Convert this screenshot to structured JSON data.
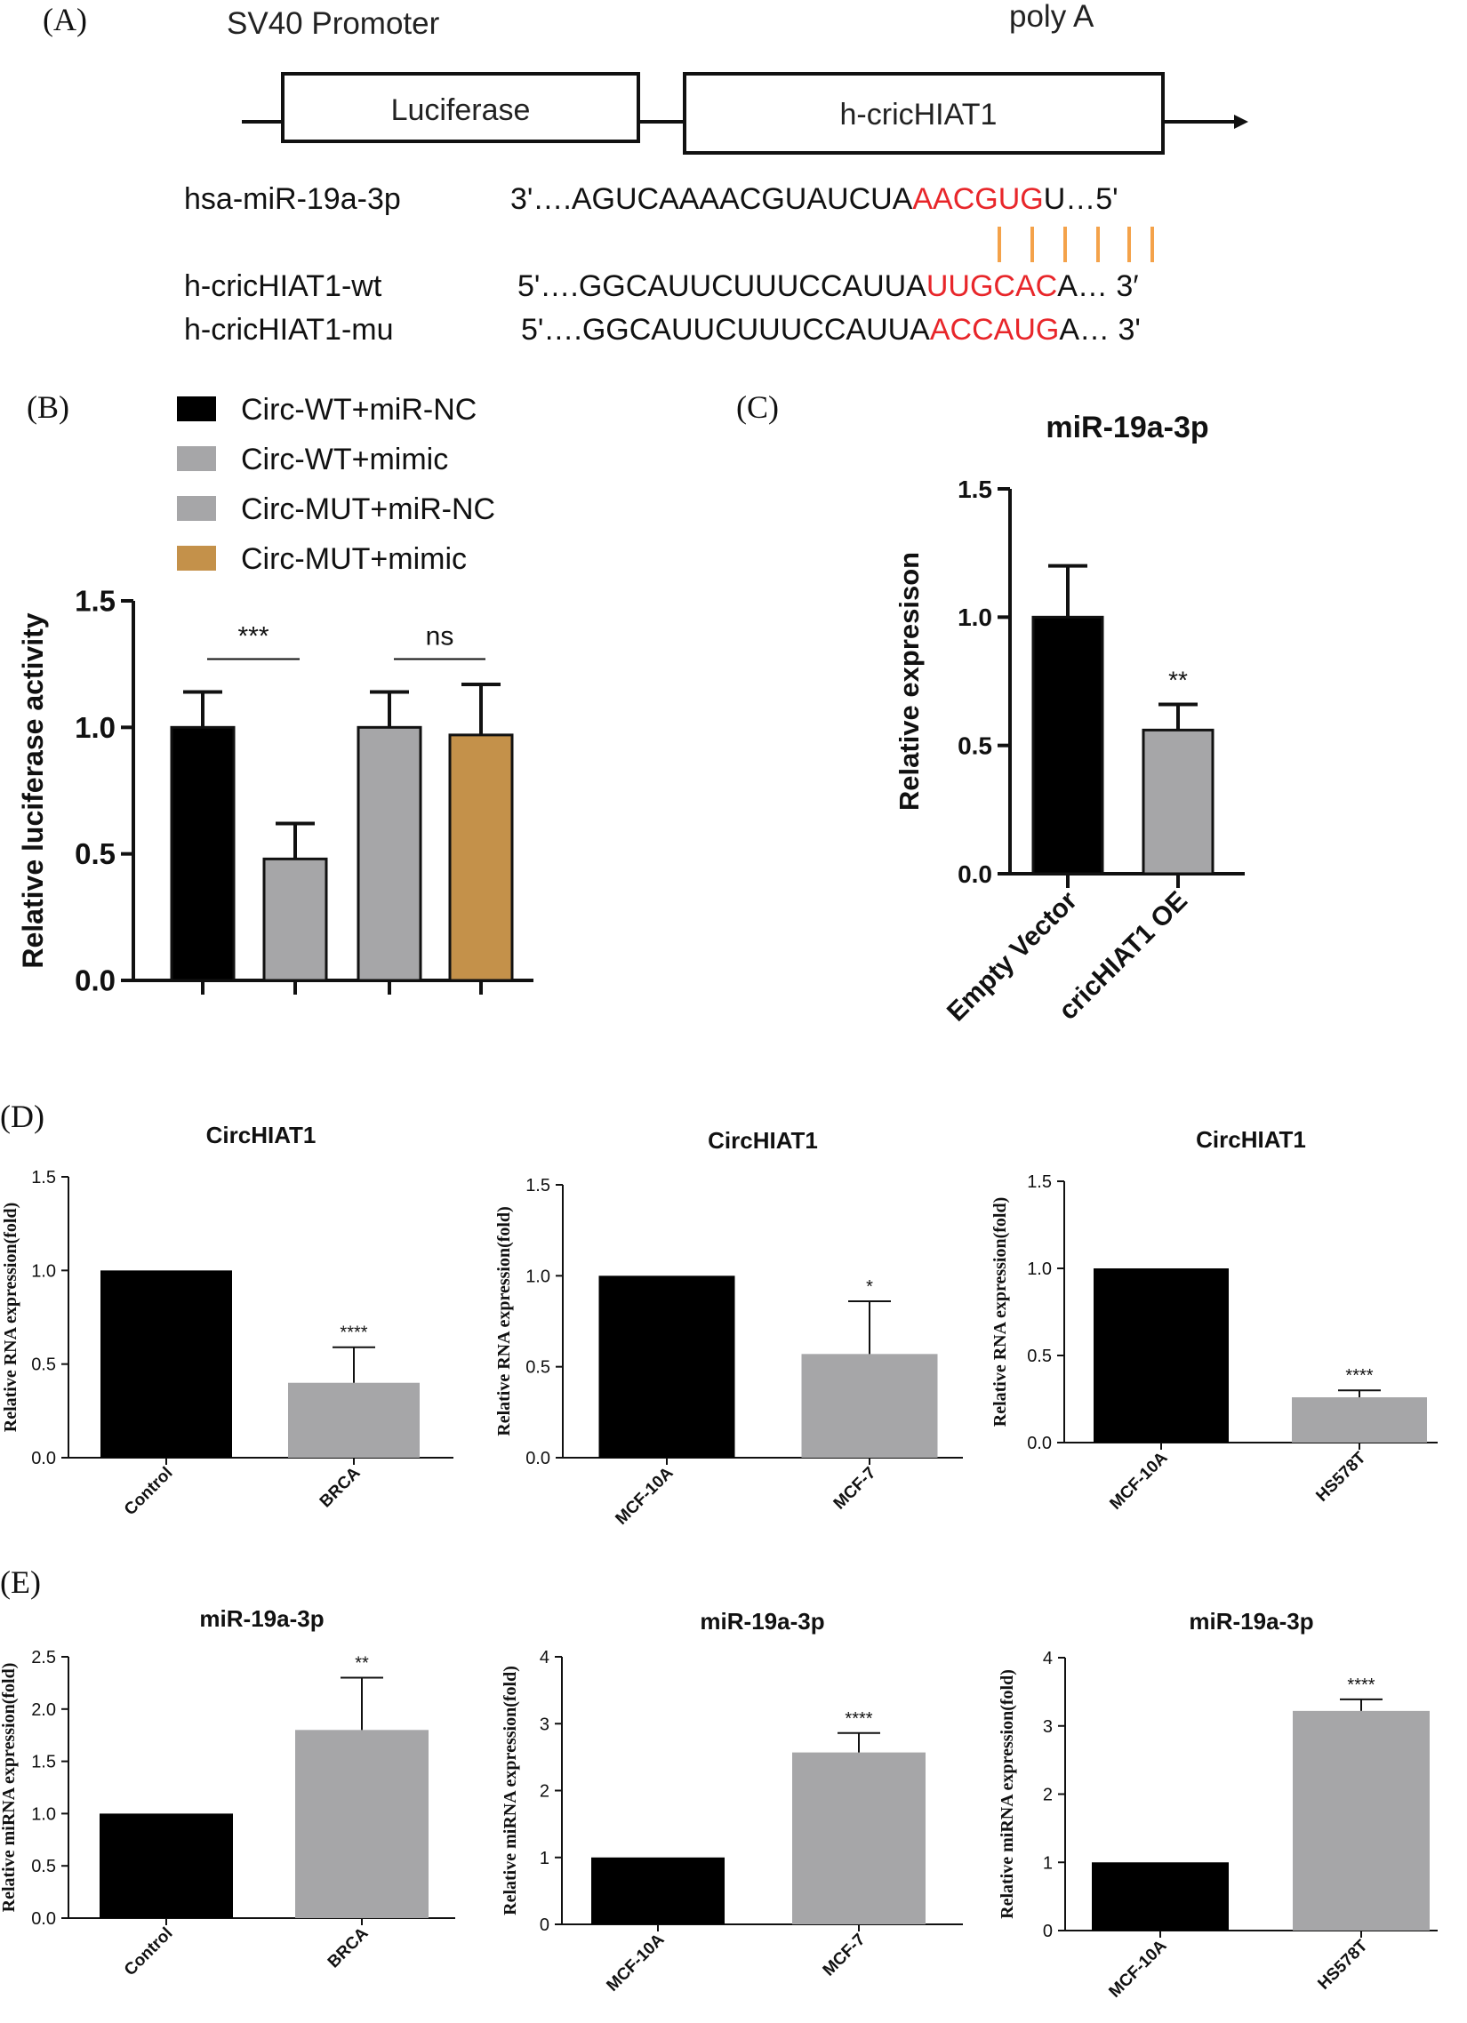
{
  "panel_labels": {
    "A": "(A)",
    "B": "(B)",
    "C": "(C)",
    "D": "(D)",
    "E": "(E)"
  },
  "construct": {
    "promoter_label": "SV40 Promoter",
    "polya_label": "poly A",
    "box1_label": "Luciferase",
    "box2_label": "h-cricHIAT1",
    "mir_name": "hsa-miR-19a-3p",
    "mir_seq_prefix": "3'….AGUCAAAACGUAUCUA",
    "mir_seq_red": "AACGUG",
    "mir_seq_suffix": "U…5'",
    "wt_name": "h-cricHIAT1-wt",
    "wt_seq_prefix": "5'….GGCAUUCUUUCCAUUA",
    "wt_seq_red": "UUGCAC",
    "wt_seq_suffix": "A… 3′",
    "mu_name": "h-cricHIAT1-mu",
    "mu_seq_prefix": "5'….GGCAUUCUUUCCAUUA",
    "mu_seq_red": "ACCAUG",
    "mu_seq_suffix": "A… 3'",
    "highlight_color": "#e8262a",
    "pairing_color": "#f4a24a"
  },
  "chart_data": [
    {
      "id": "B",
      "type": "bar",
      "title": "",
      "ylabel": "Relative luciferase activity",
      "xlabel": "",
      "ylim": [
        0,
        1.5
      ],
      "yticks": [
        "0.0",
        "0.5",
        "1.0",
        "1.5"
      ],
      "categories": [
        "Circ-WT+miR-NC",
        "Circ-WT+mimic",
        "Circ-MUT+miR-NC",
        "Circ-MUT+mimic"
      ],
      "values": [
        1.0,
        0.48,
        1.0,
        0.97
      ],
      "errors": [
        0.14,
        0.14,
        0.14,
        0.2
      ],
      "colors": [
        "#000000",
        "#a6a6a8",
        "#a6a6a8",
        "#c4914a"
      ],
      "legend": [
        "Circ-WT+miR-NC",
        "Circ-WT+mimic",
        "Circ-MUT+miR-NC",
        "Circ-MUT+mimic"
      ],
      "annotations": [
        {
          "text": "***",
          "from": 0,
          "to": 1,
          "y": 1.27
        },
        {
          "text": "ns",
          "from": 2,
          "to": 3,
          "y": 1.27
        }
      ]
    },
    {
      "id": "C",
      "type": "bar",
      "title": "miR-19a-3p",
      "ylabel": "Relative expresison",
      "ylim": [
        0,
        1.5
      ],
      "yticks": [
        "0.0",
        "0.5",
        "1.0",
        "1.5"
      ],
      "categories": [
        "Empty Vector",
        "cricHIAT1 OE"
      ],
      "values": [
        1.0,
        0.56
      ],
      "errors": [
        0.2,
        0.1
      ],
      "colors": [
        "#000000",
        "#a6a6a8"
      ],
      "sig": [
        "",
        "**"
      ]
    },
    {
      "id": "D1",
      "type": "bar",
      "title": "CircHIAT1",
      "ylabel": "Relative RNA expression(fold)",
      "ylim": [
        0,
        1.5
      ],
      "yticks": [
        "0.0",
        "0.5",
        "1.0",
        "1.5"
      ],
      "categories": [
        "Control",
        "BRCA"
      ],
      "values": [
        1.0,
        0.4
      ],
      "errors": [
        0,
        0.19
      ],
      "colors": [
        "#000000",
        "#a6a6a8"
      ],
      "sig": [
        "",
        "****"
      ]
    },
    {
      "id": "D2",
      "type": "bar",
      "title": "CircHIAT1",
      "ylabel": "Relative RNA expression(fold)",
      "ylim": [
        0,
        1.5
      ],
      "yticks": [
        "0.0",
        "0.5",
        "1.0",
        "1.5"
      ],
      "categories": [
        "MCF-10A",
        "MCF-7"
      ],
      "values": [
        1.0,
        0.57
      ],
      "errors": [
        0,
        0.29
      ],
      "colors": [
        "#000000",
        "#a6a6a8"
      ],
      "sig": [
        "",
        "*"
      ]
    },
    {
      "id": "D3",
      "type": "bar",
      "title": "CircHIAT1",
      "ylabel": "Relative RNA expression(fold)",
      "ylim": [
        0,
        1.5
      ],
      "yticks": [
        "0.0",
        "0.5",
        "1.0",
        "1.5"
      ],
      "categories": [
        "MCF-10A",
        "HS578T"
      ],
      "values": [
        1.0,
        0.26
      ],
      "errors": [
        0,
        0.04
      ],
      "colors": [
        "#000000",
        "#a6a6a8"
      ],
      "sig": [
        "",
        "****"
      ]
    },
    {
      "id": "E1",
      "type": "bar",
      "title": "miR-19a-3p",
      "ylabel": "Relative miRNA expression(fold)",
      "ylim": [
        0,
        2.5
      ],
      "yticks": [
        "0.0",
        "0.5",
        "1.0",
        "1.5",
        "2.0",
        "2.5"
      ],
      "categories": [
        "Control",
        "BRCA"
      ],
      "values": [
        1.0,
        1.8
      ],
      "errors": [
        0,
        0.5
      ],
      "colors": [
        "#000000",
        "#a6a6a8"
      ],
      "sig": [
        "",
        "**"
      ]
    },
    {
      "id": "E2",
      "type": "bar",
      "title": "miR-19a-3p",
      "ylabel": "Relative miRNA expression(fold)",
      "ylim": [
        0,
        4
      ],
      "yticks": [
        "0",
        "1",
        "2",
        "3",
        "4"
      ],
      "categories": [
        "MCF-10A",
        "MCF-7"
      ],
      "values": [
        1.0,
        2.57
      ],
      "errors": [
        0,
        0.29
      ],
      "colors": [
        "#000000",
        "#a6a6a8"
      ],
      "sig": [
        "",
        "****"
      ]
    },
    {
      "id": "E3",
      "type": "bar",
      "title": "miR-19a-3p",
      "ylabel": "Relative miRNA expression(fold)",
      "ylim": [
        0,
        4
      ],
      "yticks": [
        "0",
        "1",
        "2",
        "3",
        "4"
      ],
      "categories": [
        "MCF-10A",
        "HS578T"
      ],
      "values": [
        1.0,
        3.22
      ],
      "errors": [
        0,
        0.17
      ],
      "colors": [
        "#000000",
        "#a6a6a8"
      ],
      "sig": [
        "",
        "****"
      ]
    }
  ]
}
